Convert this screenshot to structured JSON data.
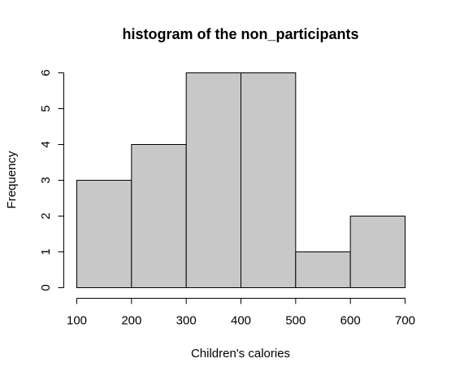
{
  "chart_data": {
    "type": "bar",
    "title": "histogram of the non_participants",
    "xlabel": "Children's calories",
    "ylabel": "Frequency",
    "bins": [
      {
        "start": 100,
        "end": 200,
        "count": 3
      },
      {
        "start": 200,
        "end": 300,
        "count": 4
      },
      {
        "start": 300,
        "end": 400,
        "count": 6
      },
      {
        "start": 400,
        "end": 500,
        "count": 6
      },
      {
        "start": 500,
        "end": 600,
        "count": 1
      },
      {
        "start": 600,
        "end": 700,
        "count": 2
      }
    ],
    "xlim": [
      100,
      700
    ],
    "ylim": [
      0,
      6
    ],
    "x_ticks": [
      100,
      200,
      300,
      400,
      500,
      600,
      700
    ],
    "y_ticks": [
      0,
      1,
      2,
      3,
      4,
      5,
      6
    ],
    "grid": false,
    "bar_fill": "#c8c8c8",
    "bar_stroke": "#000000"
  }
}
